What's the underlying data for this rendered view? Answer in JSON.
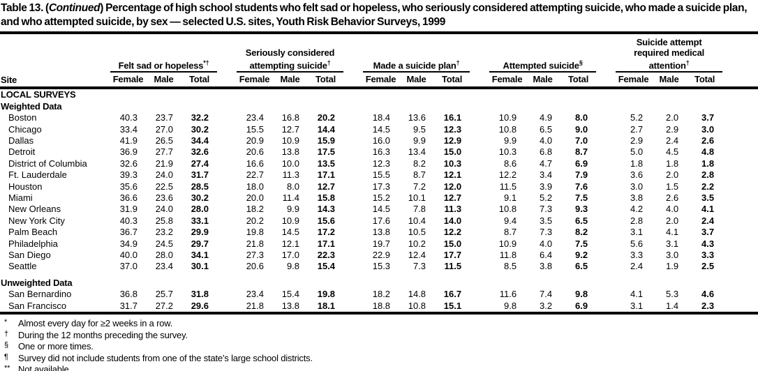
{
  "title": {
    "part1": "Table 13. (",
    "continued": "Continued",
    "part2": ") Percentage of high school students who felt sad or hopeless, who seriously considered attempting suicide, who made a suicide plan, and who attempted suicide, by sex — selected U.S. sites, Youth Risk Behavior Surveys, 1999"
  },
  "table": {
    "site_header": "Site",
    "sub_headers": [
      "Female",
      "Male",
      "Total"
    ],
    "groups": [
      {
        "label": "Felt sad or hopeless",
        "sup": "*†"
      },
      {
        "label": "Seriously considered attempting suicide",
        "sup": "†"
      },
      {
        "label": "Made a suicide plan",
        "sup": "†"
      },
      {
        "label": "Attempted suicide",
        "sup": "§"
      },
      {
        "label": "Suicide attempt required medical attention",
        "sup": "†"
      }
    ],
    "sections": [
      {
        "heading": "LOCAL SURVEYS",
        "subheading": "Weighted Data",
        "rows": [
          {
            "site": "Boston",
            "values": [
              "40.3",
              "23.7",
              "32.2",
              "23.4",
              "16.8",
              "20.2",
              "18.4",
              "13.6",
              "16.1",
              "10.9",
              "4.9",
              "8.0",
              "5.2",
              "2.0",
              "3.7"
            ]
          },
          {
            "site": "Chicago",
            "values": [
              "33.4",
              "27.0",
              "30.2",
              "15.5",
              "12.7",
              "14.4",
              "14.5",
              "9.5",
              "12.3",
              "10.8",
              "6.5",
              "9.0",
              "2.7",
              "2.9",
              "3.0"
            ]
          },
          {
            "site": "Dallas",
            "values": [
              "41.9",
              "26.5",
              "34.4",
              "20.9",
              "10.9",
              "15.9",
              "16.0",
              "9.9",
              "12.9",
              "9.9",
              "4.0",
              "7.0",
              "2.9",
              "2.4",
              "2.6"
            ]
          },
          {
            "site": "Detroit",
            "values": [
              "36.9",
              "27.7",
              "32.6",
              "20.6",
              "13.8",
              "17.5",
              "16.3",
              "13.4",
              "15.0",
              "10.3",
              "6.8",
              "8.7",
              "5.0",
              "4.5",
              "4.8"
            ]
          },
          {
            "site": "District of Columbia",
            "values": [
              "32.6",
              "21.9",
              "27.4",
              "16.6",
              "10.0",
              "13.5",
              "12.3",
              "8.2",
              "10.3",
              "8.6",
              "4.7",
              "6.9",
              "1.8",
              "1.8",
              "1.8"
            ]
          },
          {
            "site": "Ft. Lauderdale",
            "values": [
              "39.3",
              "24.0",
              "31.7",
              "22.7",
              "11.3",
              "17.1",
              "15.5",
              "8.7",
              "12.1",
              "12.2",
              "3.4",
              "7.9",
              "3.6",
              "2.0",
              "2.8"
            ]
          },
          {
            "site": "Houston",
            "values": [
              "35.6",
              "22.5",
              "28.5",
              "18.0",
              "8.0",
              "12.7",
              "17.3",
              "7.2",
              "12.0",
              "11.5",
              "3.9",
              "7.6",
              "3.0",
              "1.5",
              "2.2"
            ]
          },
          {
            "site": "Miami",
            "values": [
              "36.6",
              "23.6",
              "30.2",
              "20.0",
              "11.4",
              "15.8",
              "15.2",
              "10.1",
              "12.7",
              "9.1",
              "5.2",
              "7.5",
              "3.8",
              "2.6",
              "3.5"
            ]
          },
          {
            "site": "New Orleans",
            "values": [
              "31.9",
              "24.0",
              "28.0",
              "18.2",
              "9.9",
              "14.3",
              "14.5",
              "7.8",
              "11.3",
              "10.8",
              "7.3",
              "9.3",
              "4.2",
              "4.0",
              "4.1"
            ]
          },
          {
            "site": "New York City",
            "values": [
              "40.3",
              "25.8",
              "33.1",
              "20.2",
              "10.9",
              "15.6",
              "17.6",
              "10.4",
              "14.0",
              "9.4",
              "3.5",
              "6.5",
              "2.8",
              "2.0",
              "2.4"
            ]
          },
          {
            "site": "Palm Beach",
            "values": [
              "36.7",
              "23.2",
              "29.9",
              "19.8",
              "14.5",
              "17.2",
              "13.8",
              "10.5",
              "12.2",
              "8.7",
              "7.3",
              "8.2",
              "3.1",
              "4.1",
              "3.7"
            ]
          },
          {
            "site": "Philadelphia",
            "values": [
              "34.9",
              "24.5",
              "29.7",
              "21.8",
              "12.1",
              "17.1",
              "19.7",
              "10.2",
              "15.0",
              "10.9",
              "4.0",
              "7.5",
              "5.6",
              "3.1",
              "4.3"
            ]
          },
          {
            "site": "San Diego",
            "values": [
              "40.0",
              "28.0",
              "34.1",
              "27.3",
              "17.0",
              "22.3",
              "22.9",
              "12.4",
              "17.7",
              "11.8",
              "6.4",
              "9.2",
              "3.3",
              "3.0",
              "3.3"
            ]
          },
          {
            "site": "Seattle",
            "values": [
              "37.0",
              "23.4",
              "30.1",
              "20.6",
              "9.8",
              "15.4",
              "15.3",
              "7.3",
              "11.5",
              "8.5",
              "3.8",
              "6.5",
              "2.4",
              "1.9",
              "2.5"
            ]
          }
        ]
      },
      {
        "gap_before": true,
        "subheading": "Unweighted Data",
        "rows": [
          {
            "site": "San Bernardino",
            "values": [
              "36.8",
              "25.7",
              "31.8",
              "23.4",
              "15.4",
              "19.8",
              "18.2",
              "14.8",
              "16.7",
              "11.6",
              "7.4",
              "9.8",
              "4.1",
              "5.3",
              "4.6"
            ]
          },
          {
            "site": "San Francisco",
            "values": [
              "31.7",
              "27.2",
              "29.6",
              "21.8",
              "13.8",
              "18.1",
              "18.8",
              "10.8",
              "15.1",
              "9.8",
              "3.2",
              "6.9",
              "3.1",
              "1.4",
              "2.3"
            ]
          }
        ]
      }
    ]
  },
  "footnotes": [
    {
      "symbol": "*",
      "text": "Almost every day for ≥2 weeks in a row."
    },
    {
      "symbol": "†",
      "text": "During the 12 months preceding the survey."
    },
    {
      "symbol": "§",
      "text": "One or more times."
    },
    {
      "symbol": "¶",
      "text": "Survey did not include students from one of the state’s large school districts."
    },
    {
      "symbol": "**",
      "text": "Not available."
    }
  ]
}
